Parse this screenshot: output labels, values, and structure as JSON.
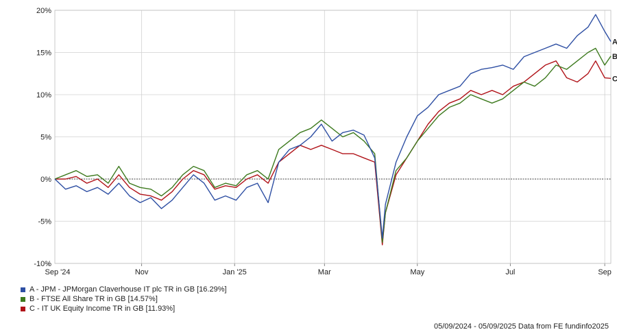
{
  "chart_data": {
    "type": "line",
    "title": "",
    "xlabel": "",
    "ylabel": "",
    "ylim": [
      -10,
      20
    ],
    "yticks": [
      -10,
      -5,
      0,
      5,
      10,
      15,
      20
    ],
    "ytick_labels": [
      "-10%",
      "-5%",
      "0%",
      "5%",
      "10%",
      "15%",
      "20%"
    ],
    "xlim": [
      "2024-09-05",
      "2025-09-05"
    ],
    "xticks": [
      "2024-09-01",
      "2024-11-01",
      "2025-01-01",
      "2025-03-01",
      "2025-05-01",
      "2025-07-01",
      "2025-09-01"
    ],
    "xtick_labels": [
      "Sep '24",
      "Nov",
      "Jan '25",
      "Mar",
      "May",
      "Jul",
      "Sep"
    ],
    "grid": true,
    "zero_line": true,
    "legend_position": "bottom-left",
    "series": [
      {
        "id": "A",
        "name": "A - JPM - JPMorgan Claverhouse IT plc TR in GB [16.29%]",
        "end_label": "A",
        "color": "#2e4fa3",
        "points": [
          [
            "2024-09-05",
            0
          ],
          [
            "2024-09-12",
            -1.2
          ],
          [
            "2024-09-19",
            -0.8
          ],
          [
            "2024-09-26",
            -1.5
          ],
          [
            "2024-10-03",
            -1.0
          ],
          [
            "2024-10-10",
            -1.8
          ],
          [
            "2024-10-17",
            -0.5
          ],
          [
            "2024-10-24",
            -2.0
          ],
          [
            "2024-10-31",
            -2.8
          ],
          [
            "2024-11-07",
            -2.2
          ],
          [
            "2024-11-14",
            -3.5
          ],
          [
            "2024-11-21",
            -2.5
          ],
          [
            "2024-11-28",
            -1.0
          ],
          [
            "2024-12-05",
            0.5
          ],
          [
            "2024-12-12",
            -0.5
          ],
          [
            "2024-12-19",
            -2.5
          ],
          [
            "2024-12-26",
            -2.0
          ],
          [
            "2025-01-02",
            -2.5
          ],
          [
            "2025-01-09",
            -1.0
          ],
          [
            "2025-01-16",
            -0.5
          ],
          [
            "2025-01-23",
            -2.8
          ],
          [
            "2025-01-30",
            2.0
          ],
          [
            "2025-02-06",
            3.5
          ],
          [
            "2025-02-13",
            4.0
          ],
          [
            "2025-02-20",
            5.0
          ],
          [
            "2025-02-27",
            6.5
          ],
          [
            "2025-03-06",
            4.5
          ],
          [
            "2025-03-13",
            5.5
          ],
          [
            "2025-03-20",
            5.8
          ],
          [
            "2025-03-27",
            5.2
          ],
          [
            "2025-04-03",
            2.5
          ],
          [
            "2025-04-08",
            -7.0
          ],
          [
            "2025-04-10",
            -3.0
          ],
          [
            "2025-04-17",
            2.0
          ],
          [
            "2025-04-24",
            5.0
          ],
          [
            "2025-05-01",
            7.5
          ],
          [
            "2025-05-08",
            8.5
          ],
          [
            "2025-05-15",
            10.0
          ],
          [
            "2025-05-22",
            10.5
          ],
          [
            "2025-05-29",
            11.0
          ],
          [
            "2025-06-05",
            12.5
          ],
          [
            "2025-06-12",
            13.0
          ],
          [
            "2025-06-19",
            13.2
          ],
          [
            "2025-06-26",
            13.5
          ],
          [
            "2025-07-03",
            13.0
          ],
          [
            "2025-07-10",
            14.5
          ],
          [
            "2025-07-17",
            15.0
          ],
          [
            "2025-07-24",
            15.5
          ],
          [
            "2025-07-31",
            16.0
          ],
          [
            "2025-08-07",
            15.5
          ],
          [
            "2025-08-14",
            17.0
          ],
          [
            "2025-08-21",
            18.0
          ],
          [
            "2025-08-26",
            19.5
          ],
          [
            "2025-09-01",
            17.5
          ],
          [
            "2025-09-05",
            16.3
          ]
        ]
      },
      {
        "id": "B",
        "name": "B - FTSE All Share TR in GB [14.57%]",
        "end_label": "B",
        "color": "#3d7a1e",
        "points": [
          [
            "2024-09-05",
            0
          ],
          [
            "2024-09-12",
            0.5
          ],
          [
            "2024-09-19",
            1.0
          ],
          [
            "2024-09-26",
            0.3
          ],
          [
            "2024-10-03",
            0.5
          ],
          [
            "2024-10-10",
            -0.5
          ],
          [
            "2024-10-17",
            1.5
          ],
          [
            "2024-10-24",
            -0.5
          ],
          [
            "2024-10-31",
            -1.0
          ],
          [
            "2024-11-07",
            -1.2
          ],
          [
            "2024-11-14",
            -2.0
          ],
          [
            "2024-11-21",
            -1.0
          ],
          [
            "2024-11-28",
            0.5
          ],
          [
            "2024-12-05",
            1.5
          ],
          [
            "2024-12-12",
            1.0
          ],
          [
            "2024-12-19",
            -1.0
          ],
          [
            "2024-12-26",
            -0.5
          ],
          [
            "2025-01-02",
            -0.8
          ],
          [
            "2025-01-09",
            0.5
          ],
          [
            "2025-01-16",
            1.0
          ],
          [
            "2025-01-23",
            0.0
          ],
          [
            "2025-01-30",
            3.5
          ],
          [
            "2025-02-06",
            4.5
          ],
          [
            "2025-02-13",
            5.5
          ],
          [
            "2025-02-20",
            6.0
          ],
          [
            "2025-02-27",
            7.0
          ],
          [
            "2025-03-06",
            6.0
          ],
          [
            "2025-03-13",
            5.0
          ],
          [
            "2025-03-20",
            5.5
          ],
          [
            "2025-03-27",
            4.5
          ],
          [
            "2025-04-03",
            3.0
          ],
          [
            "2025-04-08",
            -7.5
          ],
          [
            "2025-04-10",
            -4.0
          ],
          [
            "2025-04-17",
            1.0
          ],
          [
            "2025-04-24",
            2.5
          ],
          [
            "2025-05-01",
            4.5
          ],
          [
            "2025-05-08",
            6.0
          ],
          [
            "2025-05-15",
            7.5
          ],
          [
            "2025-05-22",
            8.5
          ],
          [
            "2025-05-29",
            9.0
          ],
          [
            "2025-06-05",
            10.0
          ],
          [
            "2025-06-12",
            9.5
          ],
          [
            "2025-06-19",
            9.0
          ],
          [
            "2025-06-26",
            9.5
          ],
          [
            "2025-07-03",
            10.5
          ],
          [
            "2025-07-10",
            11.5
          ],
          [
            "2025-07-17",
            11.0
          ],
          [
            "2025-07-24",
            12.0
          ],
          [
            "2025-07-31",
            13.5
          ],
          [
            "2025-08-07",
            13.0
          ],
          [
            "2025-08-14",
            14.0
          ],
          [
            "2025-08-21",
            15.0
          ],
          [
            "2025-08-26",
            15.5
          ],
          [
            "2025-09-01",
            13.5
          ],
          [
            "2025-09-05",
            14.57
          ]
        ]
      },
      {
        "id": "C",
        "name": "C - IT UK Equity Income TR in GB [11.93%]",
        "end_label": "C",
        "color": "#b01218",
        "points": [
          [
            "2024-09-05",
            0
          ],
          [
            "2024-09-12",
            0.0
          ],
          [
            "2024-09-19",
            0.3
          ],
          [
            "2024-09-26",
            -0.5
          ],
          [
            "2024-10-03",
            0.0
          ],
          [
            "2024-10-10",
            -1.0
          ],
          [
            "2024-10-17",
            0.5
          ],
          [
            "2024-10-24",
            -1.0
          ],
          [
            "2024-10-31",
            -1.8
          ],
          [
            "2024-11-07",
            -2.0
          ],
          [
            "2024-11-14",
            -2.5
          ],
          [
            "2024-11-21",
            -1.5
          ],
          [
            "2024-11-28",
            0.0
          ],
          [
            "2024-12-05",
            1.0
          ],
          [
            "2024-12-12",
            0.5
          ],
          [
            "2024-12-19",
            -1.2
          ],
          [
            "2024-12-26",
            -0.8
          ],
          [
            "2025-01-02",
            -1.0
          ],
          [
            "2025-01-09",
            0.0
          ],
          [
            "2025-01-16",
            0.5
          ],
          [
            "2025-01-23",
            -0.5
          ],
          [
            "2025-01-30",
            2.0
          ],
          [
            "2025-02-06",
            3.0
          ],
          [
            "2025-02-13",
            4.0
          ],
          [
            "2025-02-20",
            3.5
          ],
          [
            "2025-02-27",
            4.0
          ],
          [
            "2025-03-06",
            3.5
          ],
          [
            "2025-03-13",
            3.0
          ],
          [
            "2025-03-20",
            3.0
          ],
          [
            "2025-03-27",
            2.5
          ],
          [
            "2025-04-03",
            2.0
          ],
          [
            "2025-04-08",
            -7.8
          ],
          [
            "2025-04-10",
            -4.0
          ],
          [
            "2025-04-17",
            0.5
          ],
          [
            "2025-04-24",
            2.5
          ],
          [
            "2025-05-01",
            4.5
          ],
          [
            "2025-05-08",
            6.5
          ],
          [
            "2025-05-15",
            8.0
          ],
          [
            "2025-05-22",
            9.0
          ],
          [
            "2025-05-29",
            9.5
          ],
          [
            "2025-06-05",
            10.5
          ],
          [
            "2025-06-12",
            10.0
          ],
          [
            "2025-06-19",
            10.5
          ],
          [
            "2025-06-26",
            10.0
          ],
          [
            "2025-07-03",
            11.0
          ],
          [
            "2025-07-10",
            11.5
          ],
          [
            "2025-07-17",
            12.5
          ],
          [
            "2025-07-24",
            13.5
          ],
          [
            "2025-07-31",
            14.0
          ],
          [
            "2025-08-07",
            12.0
          ],
          [
            "2025-08-14",
            11.5
          ],
          [
            "2025-08-21",
            12.5
          ],
          [
            "2025-08-26",
            14.0
          ],
          [
            "2025-09-01",
            12.0
          ],
          [
            "2025-09-05",
            11.93
          ]
        ]
      }
    ]
  },
  "footer": {
    "text": "05/09/2024 - 05/09/2025 Data from FE fundinfo2025"
  }
}
